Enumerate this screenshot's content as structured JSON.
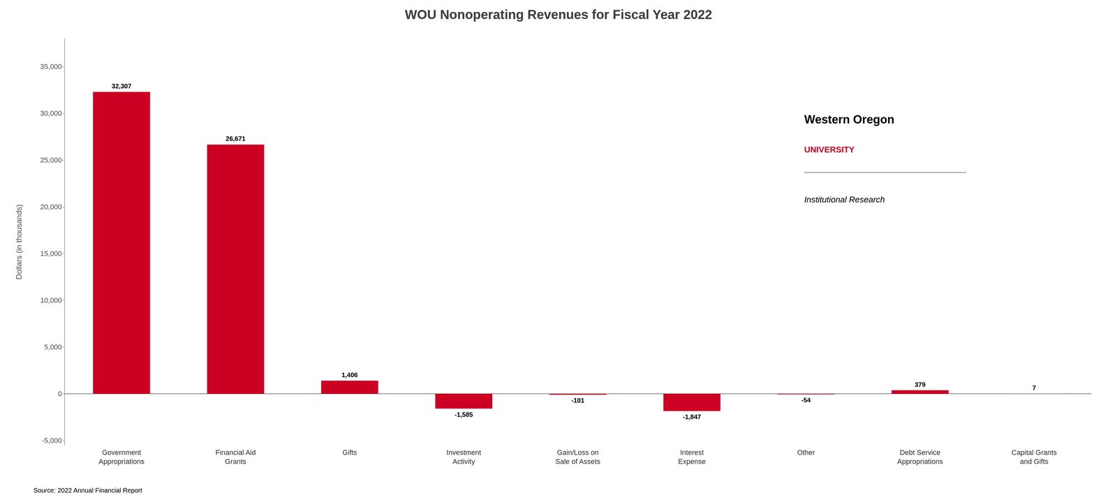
{
  "chart_data": {
    "type": "bar",
    "title": "WOU Nonoperating Revenues for Fiscal Year 2022",
    "categories": [
      "Government\nAppropriations",
      "Financial Aid\nGrants",
      "Gifts",
      "Investment\nActivity",
      "Gain/Loss on\nSale of Assets",
      "Interest\nExpense",
      "Other",
      "Debt Service\nAppropriations",
      "Capital Grants\nand Gifts"
    ],
    "values": [
      32307,
      26671,
      1406,
      -1585,
      -101,
      -1847,
      -54,
      379,
      7
    ],
    "value_labels": [
      "32,307",
      "26,671",
      "1,406",
      "-1,585",
      "-101",
      "-1,847",
      "-54",
      "379",
      "7"
    ],
    "data_labels": true,
    "color": "#CC0022",
    "ylabel": "Dollars (in thousands)",
    "ylim": [
      -5500,
      38000
    ],
    "yticks": [
      {
        "value": -5000,
        "label": "-5,000"
      },
      0,
      {
        "value": 5000,
        "label": "5,000"
      },
      {
        "value": 10000,
        "label": "10,000"
      },
      {
        "value": 15000,
        "label": "15,000"
      },
      {
        "value": 20000,
        "label": "20,000"
      },
      {
        "value": 25000,
        "label": "25,000"
      },
      {
        "value": 30000,
        "label": "30,000"
      },
      {
        "value": 35000,
        "label": "35,000"
      }
    ],
    "grid": false,
    "annotations": [
      "Source: 2022 Annual Financial Report",
      "Western Oregon",
      "UNIVERSITY",
      "Institutional Research"
    ]
  }
}
